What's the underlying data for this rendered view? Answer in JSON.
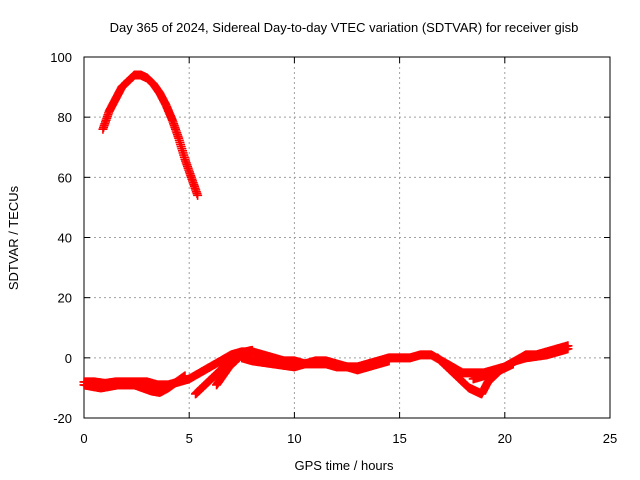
{
  "chart_data": {
    "type": "scatter",
    "title": "Day 365 of 2024, Sidereal Day-to-day VTEC variation (SDTVAR) for receiver gisb",
    "xlabel": "GPS time / hours",
    "ylabel": "SDTVAR / TECUs",
    "xlim": [
      0,
      25
    ],
    "ylim": [
      -20,
      100
    ],
    "xticks": [
      0,
      5,
      10,
      15,
      20,
      25
    ],
    "yticks": [
      -20,
      0,
      20,
      40,
      60,
      80,
      100
    ],
    "grid": true,
    "marker": "plus",
    "color": "#ff0000",
    "series": [
      {
        "name": "arc-high",
        "x": [
          0.9,
          1.2,
          1.5,
          1.8,
          2.1,
          2.4,
          2.7,
          3.0,
          3.3,
          3.6,
          3.9,
          4.2,
          4.5,
          4.8,
          5.1,
          5.4
        ],
        "y": [
          76,
          82,
          86,
          90,
          92,
          94,
          94,
          93,
          91,
          88,
          84,
          79,
          73,
          66,
          60,
          54
        ]
      },
      {
        "name": "arc-main",
        "x": [
          0.0,
          0.5,
          1.0,
          1.5,
          2.0,
          2.5,
          3.0,
          3.5,
          4.0,
          4.5,
          5.0,
          5.5,
          6.0,
          6.5,
          7.0,
          7.5,
          8.0,
          8.5,
          9.0,
          9.5,
          10.0,
          10.5,
          11.0,
          11.5,
          12.0,
          12.5,
          13.0,
          13.5,
          14.0,
          14.5,
          15.0,
          15.5,
          16.0,
          16.5,
          17.0,
          17.5,
          18.0,
          18.5,
          19.0,
          19.5,
          20.0,
          20.5,
          21.0,
          21.5,
          22.0,
          22.5,
          23.0
        ],
        "y": [
          -8,
          -8,
          -8.5,
          -8,
          -8,
          -8,
          -8,
          -9,
          -9,
          -8,
          -7,
          -5,
          -3,
          -1,
          1,
          2,
          2,
          1,
          0,
          -1,
          -1,
          -2,
          -2,
          -2,
          -3,
          -3,
          -3,
          -2,
          -1,
          0,
          0,
          0,
          1,
          1,
          -1,
          -3,
          -5,
          -5,
          -5,
          -4,
          -3,
          -1,
          1,
          1,
          2,
          3,
          4
        ]
      },
      {
        "name": "arc-low-a",
        "x": [
          0.0,
          0.4,
          0.8,
          1.2,
          1.6,
          2.0,
          2.4,
          2.8,
          3.2,
          3.6,
          4.0,
          4.4,
          4.8
        ],
        "y": [
          -9,
          -9.5,
          -10,
          -9.5,
          -9,
          -9,
          -9,
          -10,
          -11,
          -11.5,
          -10,
          -8,
          -6
        ]
      },
      {
        "name": "arc-low-b",
        "x": [
          5.3,
          5.6,
          5.9,
          6.2,
          6.5,
          6.8,
          7.1,
          7.4,
          7.7,
          8.0
        ],
        "y": [
          -12,
          -10,
          -8,
          -6,
          -4,
          -2,
          0,
          1,
          2,
          2.5
        ]
      },
      {
        "name": "arc-low-c",
        "x": [
          6.3,
          6.6,
          6.9,
          7.2,
          7.5,
          7.8
        ],
        "y": [
          -9,
          -6,
          -3,
          -1,
          1,
          2
        ]
      },
      {
        "name": "arc-dip",
        "x": [
          16.8,
          17.1,
          17.4,
          17.7,
          18.0,
          18.3,
          18.6,
          18.9,
          19.2,
          19.5,
          19.8,
          20.1,
          20.4
        ],
        "y": [
          0,
          -2,
          -4,
          -6,
          -8,
          -10,
          -11,
          -12,
          -8,
          -6,
          -4,
          -3,
          -2
        ]
      },
      {
        "name": "arc-mid",
        "x": [
          7.5,
          8.0,
          8.5,
          9.0,
          9.5,
          10.0,
          10.5,
          11.0,
          11.5,
          12.0,
          12.5,
          13.0,
          13.5,
          14.0,
          14.5
        ],
        "y": [
          0,
          -1,
          -1.5,
          -2,
          -2.5,
          -3,
          -2,
          -1,
          -1,
          -2,
          -3,
          -4,
          -3,
          -2,
          -1
        ]
      },
      {
        "name": "arc-late",
        "x": [
          18.5,
          19.0,
          19.5,
          20.0,
          20.5,
          21.0,
          21.5,
          22.0,
          22.5,
          23.0
        ],
        "y": [
          -7,
          -6,
          -5,
          -3,
          -1,
          0,
          0.5,
          1,
          2,
          3
        ]
      }
    ]
  }
}
